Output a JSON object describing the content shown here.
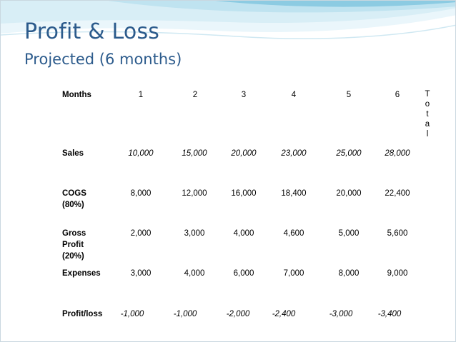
{
  "slide": {
    "title": "Profit & Loss",
    "subtitle": "Projected (6 months)"
  },
  "table": {
    "header_label": "Months",
    "months": [
      "1",
      "2",
      "3",
      "4",
      "5",
      "6"
    ],
    "total_letters": [
      "T",
      "o",
      "t",
      "a",
      "l"
    ],
    "rows": [
      {
        "label_lines": [
          "Sales"
        ],
        "values": [
          "10,000",
          "15,000",
          "20,000",
          "23,000",
          "25,000",
          "28,000"
        ]
      },
      {
        "label_lines": [
          "COGS",
          "(80%)"
        ],
        "values": [
          "8,000",
          "12,000",
          "16,000",
          "18,400",
          "20,000",
          "22,400"
        ]
      },
      {
        "label_lines": [
          "Gross",
          "Profit",
          "(20%)"
        ],
        "values": [
          "2,000",
          "3,000",
          "4,000",
          "4,600",
          "5,000",
          "5,600"
        ]
      },
      {
        "label_lines": [
          "Expenses"
        ],
        "values": [
          "3,000",
          "4,000",
          "6,000",
          "7,000",
          "8,000",
          "9,000"
        ]
      },
      {
        "label_lines": [
          "Profit/loss"
        ],
        "values": [
          "-1,000",
          "-1,000",
          "-2,000",
          "-2,400",
          "-3,000",
          "-3,400"
        ]
      }
    ]
  },
  "colors": {
    "title": "#2c5b8c",
    "swoosh_light": "#d8eef6",
    "swoosh_mid": "#8ccbe2"
  }
}
